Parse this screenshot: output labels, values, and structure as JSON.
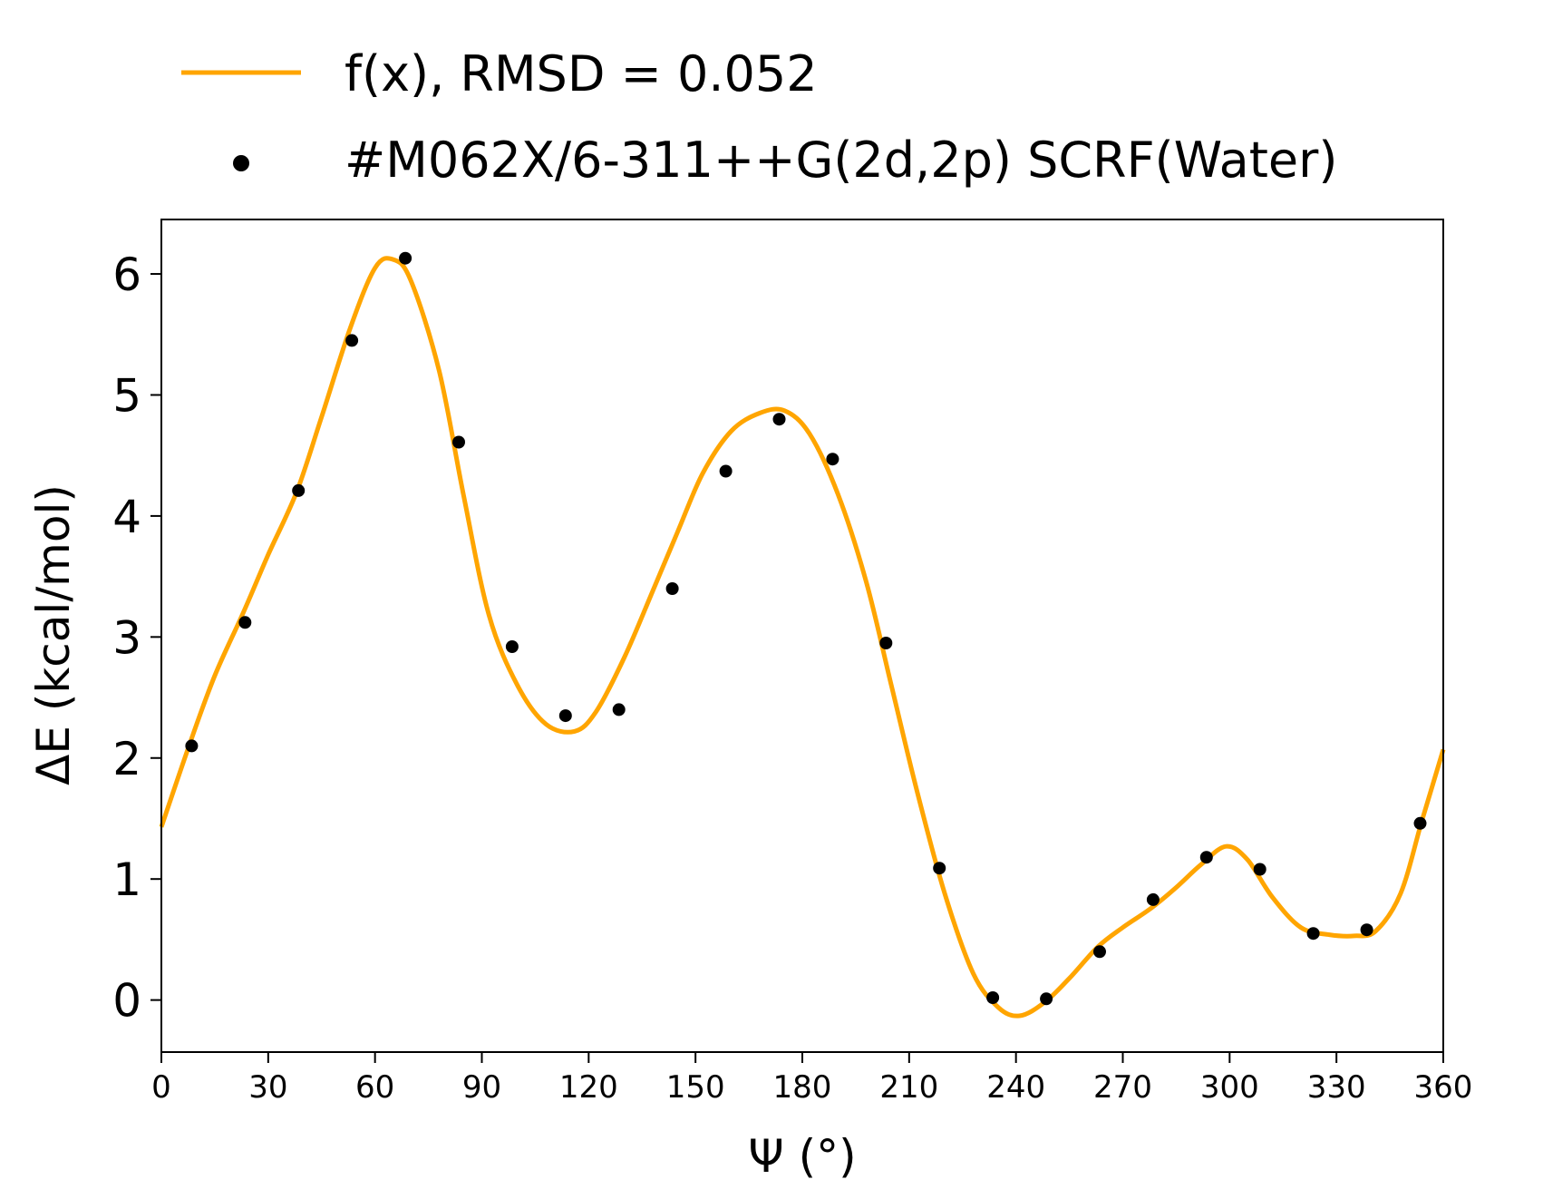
{
  "colors": {
    "fit_line": "#FFA500",
    "points": "#000000",
    "axes": "#000000"
  },
  "legend": {
    "placement": "top",
    "fit_label": "f(x), RMSD = 0.052",
    "points_label": "#M062X/6-311++G(2d,2p) SCRF(Water)"
  },
  "chart_data": {
    "type": "scatter",
    "title": "",
    "xlabel": "Ψ (°)",
    "ylabel": "ΔE (kcal/mol)",
    "xlim": [
      0,
      360
    ],
    "ylim": [
      -0.43,
      6.45
    ],
    "x_ticks": [
      "0",
      "30",
      "60",
      "90",
      "120",
      "150",
      "180",
      "210",
      "240",
      "270",
      "300",
      "330",
      "360"
    ],
    "y_ticks": [
      "0",
      "1",
      "2",
      "3",
      "4",
      "5",
      "6"
    ],
    "grid": false,
    "series": [
      {
        "name": "f(x), RMSD = 0.052",
        "kind": "line",
        "x": [
          0,
          8,
          15,
          23,
          30,
          38,
          45,
          53,
          60,
          65,
          70,
          78,
          85,
          92,
          100,
          108,
          116,
          122,
          130,
          138,
          145,
          152,
          160,
          168,
          175,
          182,
          190,
          198,
          205,
          212,
          220,
          228,
          235,
          241,
          248,
          255,
          263,
          270,
          278,
          285,
          292,
          299,
          305,
          312,
          320,
          328,
          335,
          341,
          348,
          354,
          360
        ],
        "y": [
          1.43,
          2.12,
          2.68,
          3.2,
          3.68,
          4.2,
          4.82,
          5.55,
          6.05,
          6.12,
          5.95,
          5.2,
          4.15,
          3.18,
          2.6,
          2.28,
          2.22,
          2.38,
          2.83,
          3.38,
          3.87,
          4.35,
          4.7,
          4.85,
          4.87,
          4.68,
          4.18,
          3.45,
          2.6,
          1.75,
          0.88,
          0.22,
          -0.06,
          -0.13,
          -0.02,
          0.18,
          0.44,
          0.6,
          0.76,
          0.93,
          1.12,
          1.27,
          1.16,
          0.85,
          0.6,
          0.54,
          0.53,
          0.57,
          0.88,
          1.48,
          2.07
        ]
      },
      {
        "name": "#M062X/6-311++G(2d,2p) SCRF(Water)",
        "kind": "points",
        "x": [
          8.5,
          23.5,
          38.5,
          53.5,
          68.5,
          83.5,
          98.5,
          113.5,
          128.5,
          143.5,
          158.5,
          173.5,
          188.5,
          203.5,
          218.5,
          233.5,
          248.5,
          263.5,
          278.5,
          293.5,
          308.5,
          323.5,
          338.5,
          353.5
        ],
        "y": [
          2.1,
          3.12,
          4.21,
          5.45,
          6.13,
          4.61,
          2.92,
          2.35,
          2.4,
          3.4,
          4.37,
          4.8,
          4.47,
          2.95,
          1.09,
          0.02,
          0.01,
          0.4,
          0.83,
          1.18,
          1.08,
          0.55,
          0.58,
          1.46
        ]
      }
    ]
  }
}
